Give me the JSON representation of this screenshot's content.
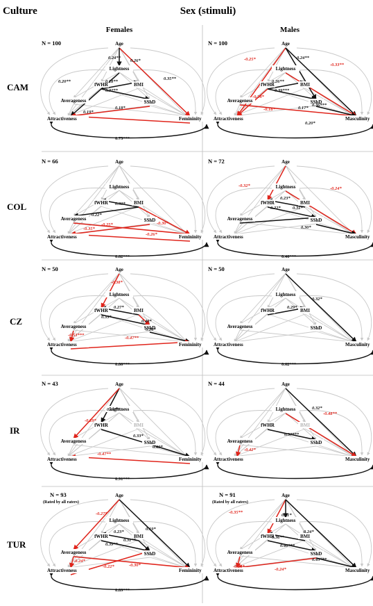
{
  "header": {
    "culture_label": "Culture",
    "sex_label": "Sex (stimuli)",
    "females_label": "Females",
    "males_label": "Males"
  },
  "colors": {
    "positive": "#111111",
    "negative": "#e0241b",
    "nonsig": "#c8c8c8",
    "divider": "#bdbdbd"
  },
  "rows": [
    {
      "culture": "CAM",
      "females": {
        "n": "N = 100",
        "note": "",
        "outcome": "Femininity",
        "labels": [
          "0.24**",
          "0.26*",
          "0.35**",
          "0.20**",
          "0.28**",
          "0.37**",
          "0.18*",
          "0.19*",
          "0.75***"
        ]
      },
      "males": {
        "n": "N = 100",
        "note": "",
        "outcome": "Masculinity",
        "labels": [
          "0.24**",
          "-0.25*",
          "-0.33**",
          "0.26**",
          "0.39***",
          "-0.24*",
          "-0.18*",
          "0.17*",
          "0.36***",
          "0.20*"
        ]
      }
    },
    {
      "culture": "COL",
      "females": {
        "n": "N = 66",
        "note": "",
        "outcome": "Femininity",
        "labels": [
          "0.33*",
          "0.22*",
          "-0.25*",
          "-0.35*",
          "-0.30*",
          "-0.26*",
          "0.82***"
        ]
      },
      "males": {
        "n": "N = 72",
        "note": "",
        "outcome": "Masculinity",
        "labels": [
          "-0.32*",
          "-0.24*",
          "0.23*",
          "0.22*",
          "0.31*",
          "0.30*",
          "0.46***"
        ]
      }
    },
    {
      "culture": "CZ",
      "females": {
        "n": "N = 50",
        "note": "",
        "outcome": "Femininity",
        "labels": [
          "-0.38*",
          "0.27*",
          "0.33*",
          "0.40*",
          "0.26*",
          "-0.53***",
          "-0.47**",
          "0.80***"
        ]
      },
      "males": {
        "n": "N = 50",
        "note": "",
        "outcome": "Masculinity",
        "labels": [
          "0.32*",
          "0.29*",
          "0.62***"
        ]
      }
    },
    {
      "culture": "IR",
      "females": {
        "n": "N = 43",
        "note": "",
        "outcome": "Femininity",
        "labels": [
          "0.46**",
          "-0.29*",
          "0.33*",
          "0.40*",
          "-0.47**",
          "0.91***"
        ]
      },
      "males": {
        "n": "N = 44",
        "note": "",
        "outcome": "Masculinity",
        "labels": [
          "0.32*",
          "-0.48**",
          "0.57***",
          "-0.42*"
        ]
      }
    },
    {
      "culture": "TUR",
      "females": {
        "n": "N = 93",
        "note": "(Rated by all raters)",
        "outcome": "Femininity",
        "labels": [
          "-0.27*",
          "0.19*",
          "0.23*",
          "0.31**",
          "0.39**",
          "-0.24*",
          "-0.22*",
          "-0.30*",
          "0.89***"
        ]
      },
      "males": {
        "n": "N = 91",
        "note": "(Rated by all raters)",
        "outcome": "Masculinity",
        "labels": [
          "-0.35**",
          "0.31*",
          "0.24*",
          "0.36**",
          "0.40***",
          "0.45***",
          "-0.23*",
          "-0.24*"
        ]
      }
    }
  ],
  "nodes": {
    "age": "Age",
    "lightness": "Lightness",
    "fwhr": "fWHR",
    "bmi": "BMI",
    "sshd": "SShD",
    "averageness": "Averageness",
    "attractiveness": "Attractiveness"
  }
}
